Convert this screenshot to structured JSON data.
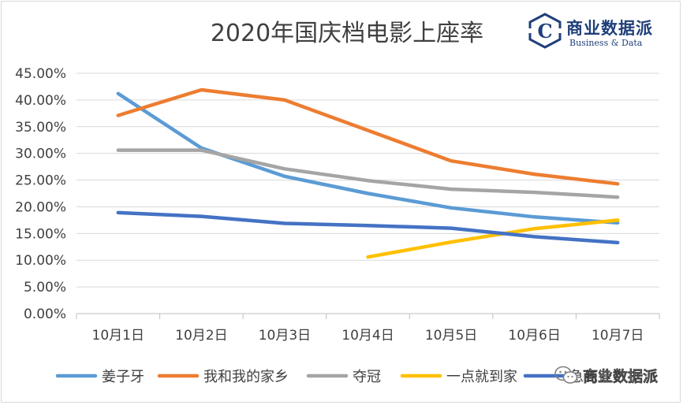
{
  "logo": {
    "name": "商业数据派",
    "subtitle": "Business & Data",
    "mark_letter": "C",
    "color": "#1f3f7a"
  },
  "watermark": {
    "text": "商业数据派",
    "icon": "wechat-icon"
  },
  "chart_data": {
    "type": "line",
    "title": "2020年国庆档电影上座率",
    "xlabel": "",
    "ylabel": "",
    "categories": [
      "10月1日",
      "10月2日",
      "10月3日",
      "10月4日",
      "10月5日",
      "10月6日",
      "10月7日"
    ],
    "ylim": [
      0,
      45
    ],
    "y_ticks": [
      0,
      5,
      10,
      15,
      20,
      25,
      30,
      35,
      40,
      45
    ],
    "y_tick_labels": [
      "0.00%",
      "5.00%",
      "10.00%",
      "15.00%",
      "20.00%",
      "25.00%",
      "30.00%",
      "35.00%",
      "40.00%",
      "45.00%"
    ],
    "grid": "horizontal",
    "legend": "bottom",
    "series": [
      {
        "name": "姜子牙",
        "color": "#5b9bd5",
        "values": [
          41.2,
          31.0,
          25.7,
          22.5,
          19.8,
          18.1,
          17.0
        ]
      },
      {
        "name": "我和我的家乡",
        "color": "#ed7d31",
        "values": [
          37.1,
          41.9,
          40.0,
          34.3,
          28.6,
          26.1,
          24.3
        ]
      },
      {
        "name": "夺冠",
        "color": "#a5a5a5",
        "values": [
          30.6,
          30.6,
          27.1,
          24.9,
          23.3,
          22.7,
          21.8
        ]
      },
      {
        "name": "一点就到家",
        "color": "#ffc000",
        "values": [
          null,
          null,
          null,
          10.6,
          13.4,
          15.9,
          17.5
        ]
      },
      {
        "name": "急先锋",
        "color": "#4472c4",
        "values": [
          18.9,
          18.2,
          16.9,
          16.5,
          16.0,
          14.4,
          13.3
        ]
      }
    ]
  }
}
